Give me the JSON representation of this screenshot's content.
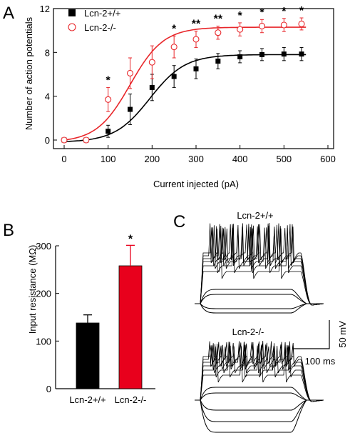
{
  "chart_data": [
    {
      "panel": "A",
      "type": "scatter",
      "xlabel": "Current injected (pA)",
      "ylabel": "Number of action potentials",
      "xlim": [
        0,
        600
      ],
      "ylim": [
        0,
        12
      ],
      "xticks": [
        0,
        100,
        200,
        300,
        400,
        500,
        600
      ],
      "yticks": [
        0,
        4,
        8,
        12
      ],
      "legend_position": "top-left",
      "series": [
        {
          "name": "Lcn-2+/+",
          "color": "#000000",
          "marker": "filled-square",
          "x": [
            0,
            50,
            100,
            150,
            200,
            250,
            300,
            350,
            400,
            450,
            500,
            540
          ],
          "y": [
            0,
            0,
            0.8,
            2.8,
            4.8,
            5.8,
            6.5,
            7.2,
            7.6,
            7.8,
            7.85,
            7.85
          ],
          "err": [
            0,
            0,
            0.55,
            1.4,
            1.2,
            1.0,
            0.9,
            0.7,
            0.55,
            0.55,
            0.6,
            0.6
          ],
          "fit": {
            "top": 7.8,
            "bottom": -0.2,
            "x50": 195,
            "slope": 40
          }
        },
        {
          "name": "Lcn-2-/-",
          "color": "#e8262a",
          "marker": "open-circle",
          "x": [
            0,
            50,
            100,
            150,
            200,
            250,
            300,
            350,
            400,
            450,
            500,
            540
          ],
          "y": [
            0,
            0,
            3.7,
            6.1,
            7.1,
            8.5,
            9.2,
            9.8,
            10.1,
            10.4,
            10.5,
            10.6
          ],
          "err": [
            0,
            0,
            1.1,
            1.4,
            1.5,
            1.0,
            0.75,
            0.6,
            0.6,
            0.6,
            0.6,
            0.55
          ],
          "fit": {
            "top": 10.3,
            "bottom": -0.2,
            "x50": 150,
            "slope": 38
          }
        }
      ],
      "annotations": [
        {
          "x": 100,
          "text": "*"
        },
        {
          "x": 250,
          "text": "*"
        },
        {
          "x": 300,
          "text": "**"
        },
        {
          "x": 350,
          "text": "**"
        },
        {
          "x": 400,
          "text": "*"
        },
        {
          "x": 450,
          "text": "*"
        },
        {
          "x": 500,
          "text": "*"
        },
        {
          "x": 540,
          "text": "*"
        }
      ]
    },
    {
      "panel": "B",
      "type": "bar",
      "ylabel": "Input resistance (MΩ)",
      "ylim": [
        0,
        300
      ],
      "yticks": [
        0,
        100,
        200,
        300
      ],
      "categories": [
        "Lcn-2+/+",
        "Lcn-2-/-"
      ],
      "values": [
        138,
        258
      ],
      "errors": [
        17,
        43
      ],
      "colors": [
        "#000000",
        "#e8001c"
      ],
      "annotation": "*"
    }
  ],
  "panel_labels": {
    "a": "A",
    "b": "B",
    "c": "C"
  },
  "traces": {
    "top_label": "Lcn-2+/+",
    "bottom_label": "Lcn-2-/-",
    "scale_voltage": "50 mV",
    "scale_time": "100 ms"
  }
}
